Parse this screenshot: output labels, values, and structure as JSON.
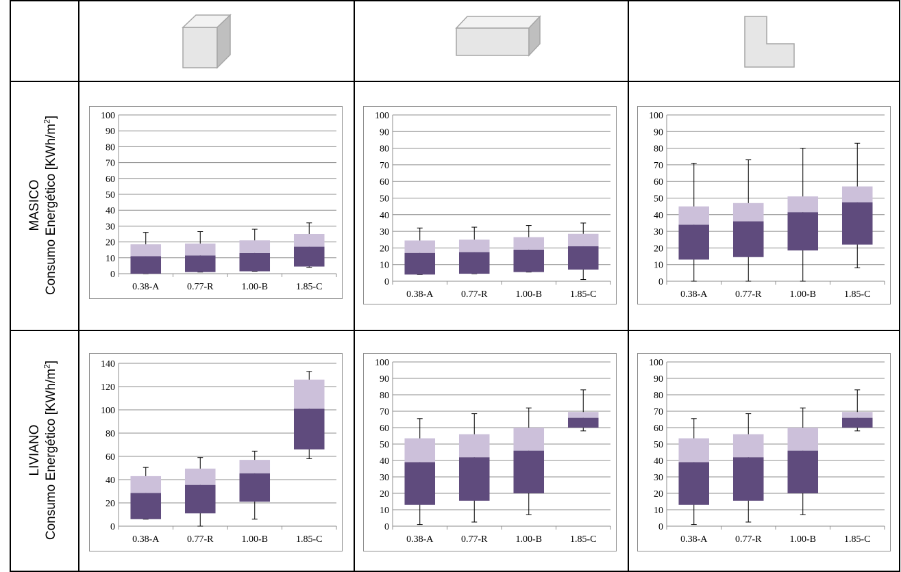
{
  "row_labels": [
    {
      "category": "MASICO",
      "measure": "Consumo Energético [KWh/m",
      "unit_sup": "2",
      "close": "]"
    },
    {
      "category": "LIVIANO",
      "measure": "Consumo Energético [KWh/m",
      "unit_sup": "2",
      "close": "]"
    }
  ],
  "shape_icons": [
    "cube-icon",
    "elongated-box-icon",
    "l-shape-icon"
  ],
  "colors": {
    "box_lower": "#5f4b7d",
    "box_upper": "#ccc0da",
    "gridline": "#8c8c8c",
    "whisker": "#000000"
  },
  "chart_data": [
    {
      "type": "box",
      "row": "MASICO",
      "shape": "cube",
      "categories": [
        "0.38-A",
        "0.77-R",
        "1.00-B",
        "1.85-C"
      ],
      "ylim": [
        0,
        100
      ],
      "yticks": [
        0,
        10,
        20,
        30,
        40,
        50,
        60,
        70,
        80,
        90,
        100
      ],
      "grid": true,
      "min": [
        0,
        1,
        1.5,
        4
      ],
      "q1": [
        0,
        1,
        1.5,
        4.5
      ],
      "median": [
        11,
        11.5,
        13,
        17
      ],
      "q3": [
        18.5,
        19,
        21,
        25
      ],
      "max": [
        26,
        26.5,
        28,
        32
      ]
    },
    {
      "type": "box",
      "row": "MASICO",
      "shape": "elongated",
      "categories": [
        "0.38-A",
        "0.77-R",
        "1.00-B",
        "1.85-C"
      ],
      "ylim": [
        0,
        100
      ],
      "yticks": [
        0,
        10,
        20,
        30,
        40,
        50,
        60,
        70,
        80,
        90,
        100
      ],
      "grid": true,
      "min": [
        4,
        4.5,
        5.5,
        1
      ],
      "q1": [
        4,
        4.5,
        5.5,
        7
      ],
      "median": [
        17,
        17.5,
        19,
        21
      ],
      "q3": [
        24.5,
        25,
        26.5,
        28.5
      ],
      "max": [
        32,
        32.5,
        33.5,
        35
      ]
    },
    {
      "type": "box",
      "row": "MASICO",
      "shape": "L",
      "categories": [
        "0.38-A",
        "0.77-R",
        "1.00-B",
        "1.85-C"
      ],
      "ylim": [
        0,
        100
      ],
      "yticks": [
        0,
        10,
        20,
        30,
        40,
        50,
        60,
        70,
        80,
        90,
        100
      ],
      "grid": true,
      "min": [
        0,
        0,
        0,
        8
      ],
      "q1": [
        13,
        14.5,
        18.5,
        22
      ],
      "median": [
        34,
        36,
        41.5,
        47.5
      ],
      "q3": [
        45,
        47,
        51,
        57
      ],
      "max": [
        71,
        73,
        80,
        83
      ]
    },
    {
      "type": "box",
      "row": "LIVIANO",
      "shape": "cube",
      "categories": [
        "0.38-A",
        "0.77-R",
        "1.00-B",
        "1.85-C"
      ],
      "ylim": [
        0,
        140
      ],
      "yticks": [
        0,
        20,
        40,
        60,
        80,
        100,
        120,
        140
      ],
      "grid": true,
      "min": [
        6,
        0,
        6,
        58
      ],
      "q1": [
        6,
        11,
        21,
        66
      ],
      "median": [
        28.5,
        35.5,
        45.5,
        101
      ],
      "q3": [
        43,
        49.5,
        57,
        126
      ],
      "max": [
        50.5,
        59,
        64.5,
        133
      ]
    },
    {
      "type": "box",
      "row": "LIVIANO",
      "shape": "elongated",
      "categories": [
        "0.38-A",
        "0.77-R",
        "1.00-B",
        "1.85-C"
      ],
      "ylim": [
        0,
        100
      ],
      "yticks": [
        0,
        10,
        20,
        30,
        40,
        50,
        60,
        70,
        80,
        90,
        100
      ],
      "grid": true,
      "min": [
        1,
        2.5,
        7,
        58
      ],
      "q1": [
        13,
        15.5,
        20,
        60
      ],
      "median": [
        39,
        42,
        46,
        66
      ],
      "q3": [
        53.5,
        56,
        60,
        69.5
      ],
      "max": [
        65.5,
        68.5,
        72,
        83
      ]
    },
    {
      "type": "box",
      "row": "LIVIANO",
      "shape": "L",
      "categories": [
        "0.38-A",
        "0.77-R",
        "1.00-B",
        "1.85-C"
      ],
      "ylim": [
        0,
        100
      ],
      "yticks": [
        0,
        10,
        20,
        30,
        40,
        50,
        60,
        70,
        80,
        90,
        100
      ],
      "grid": true,
      "min": [
        1,
        2.5,
        7,
        58
      ],
      "q1": [
        13,
        15.5,
        20,
        60
      ],
      "median": [
        39,
        42,
        46,
        66
      ],
      "q3": [
        53.5,
        56,
        60,
        69.5
      ],
      "max": [
        65.5,
        68.5,
        72,
        83
      ]
    }
  ]
}
